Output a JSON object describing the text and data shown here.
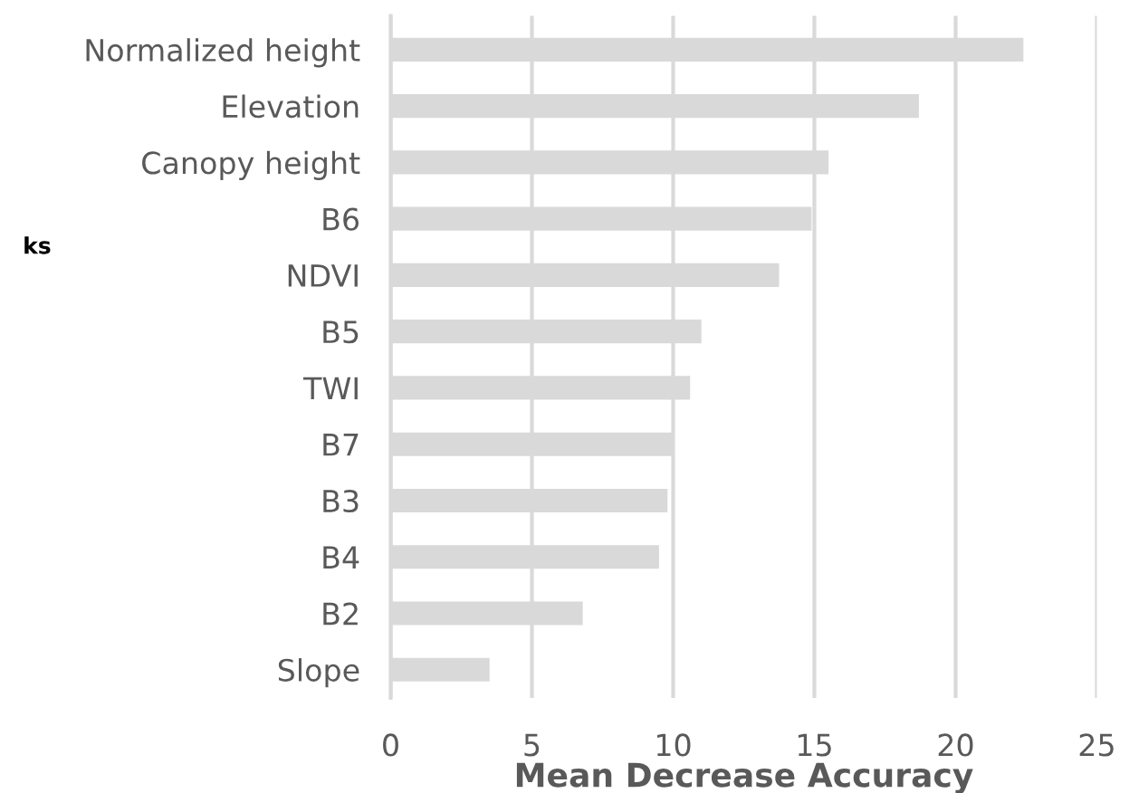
{
  "chart_data": {
    "type": "bar",
    "orientation": "horizontal",
    "categories": [
      "Normalized height",
      "Elevation",
      "Canopy height",
      "B6",
      "NDVI",
      "B5",
      "TWI",
      "B7",
      "B3",
      "B4",
      "B2",
      "Slope"
    ],
    "values": [
      22.4,
      18.7,
      15.5,
      14.9,
      13.75,
      11.0,
      10.6,
      10.0,
      9.8,
      9.5,
      6.8,
      3.5
    ],
    "color": "#d9d9d9",
    "xlabel": "Mean Decrease Accuracy",
    "xlim": [
      0,
      25
    ],
    "xticks": [
      0,
      5,
      10,
      15,
      20,
      25
    ],
    "grid": "x",
    "annotations": [
      "ks"
    ]
  }
}
